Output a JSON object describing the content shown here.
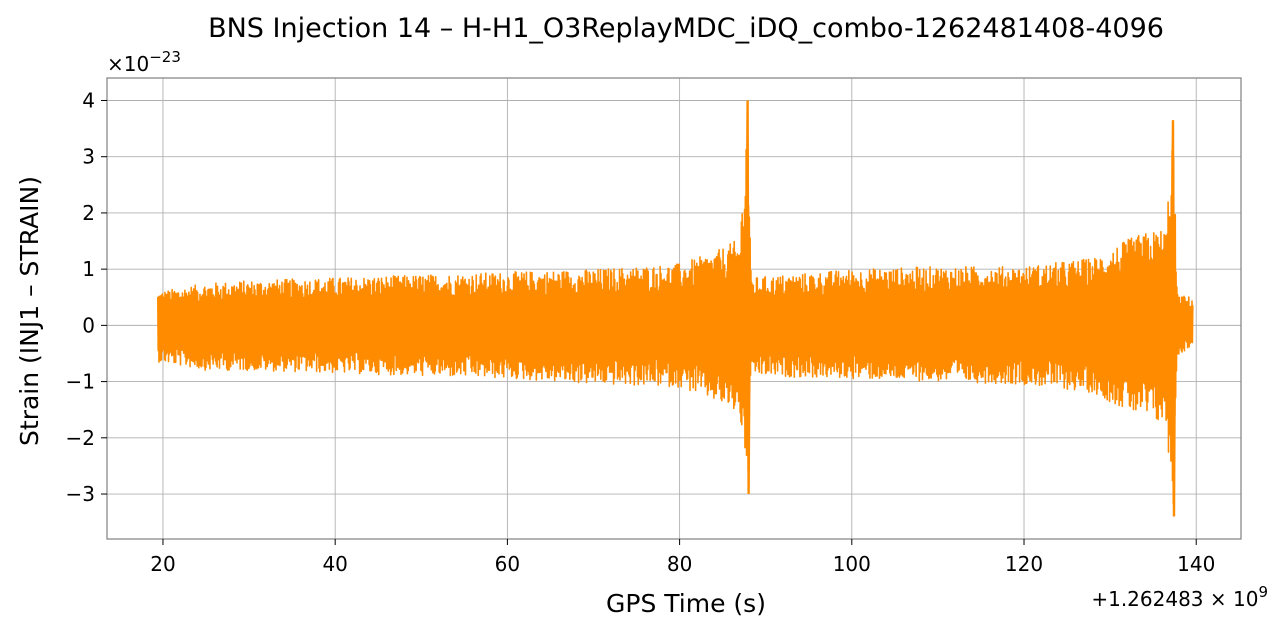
{
  "chart_data": {
    "type": "line",
    "title": "BNS Injection 14 – H-H1_O3ReplayMDC_iDQ_combo-1262481408-4096",
    "xlabel": "GPS Time (s)",
    "ylabel": "Strain (INJ1 – STRAIN)",
    "x_offset_label": "+1.262483 × 10",
    "x_offset_exp": "9",
    "y_scale_label": "×10",
    "y_scale_exp": "−23",
    "xlim": [
      13.5,
      145.2
    ],
    "ylim": [
      -3.8,
      4.4
    ],
    "x_ticks": [
      20,
      40,
      60,
      80,
      100,
      120,
      140
    ],
    "x_tick_labels": [
      "20",
      "40",
      "60",
      "80",
      "100",
      "120",
      "140"
    ],
    "y_ticks": [
      -3,
      -2,
      -1,
      0,
      1,
      2,
      3,
      4
    ],
    "y_tick_labels": [
      "−3",
      "−2",
      "−1",
      "0",
      "1",
      "2",
      "3",
      "4"
    ],
    "grid": true,
    "series": [
      {
        "color": "#ff8c00",
        "x_range": [
          19.4,
          139.6
        ],
        "envelope": [
          {
            "x": 19.4,
            "upper": 0.6,
            "lower": -0.65
          },
          {
            "x": 25,
            "upper": 0.75,
            "lower": -0.8
          },
          {
            "x": 30,
            "upper": 0.8,
            "lower": -0.8
          },
          {
            "x": 40,
            "upper": 0.85,
            "lower": -0.85
          },
          {
            "x": 50,
            "upper": 0.9,
            "lower": -0.9
          },
          {
            "x": 60,
            "upper": 0.95,
            "lower": -0.95
          },
          {
            "x": 70,
            "upper": 1.0,
            "lower": -1.05
          },
          {
            "x": 80,
            "upper": 1.1,
            "lower": -1.1
          },
          {
            "x": 84,
            "upper": 1.3,
            "lower": -1.35
          },
          {
            "x": 87,
            "upper": 1.55,
            "lower": -1.6
          },
          {
            "x": 87.9,
            "upper": 4.0,
            "lower": -3.0
          },
          {
            "x": 88.3,
            "upper": 0.85,
            "lower": -0.9
          },
          {
            "x": 100,
            "upper": 1.0,
            "lower": -0.95
          },
          {
            "x": 110,
            "upper": 1.05,
            "lower": -1.0
          },
          {
            "x": 120,
            "upper": 1.05,
            "lower": -1.05
          },
          {
            "x": 128,
            "upper": 1.2,
            "lower": -1.2
          },
          {
            "x": 133,
            "upper": 1.6,
            "lower": -1.6
          },
          {
            "x": 136.5,
            "upper": 1.75,
            "lower": -1.8
          },
          {
            "x": 137.3,
            "upper": 3.65,
            "lower": -3.4
          },
          {
            "x": 137.8,
            "upper": 0.55,
            "lower": -0.55
          },
          {
            "x": 139.6,
            "upper": 0.5,
            "lower": -0.35
          }
        ]
      }
    ]
  }
}
